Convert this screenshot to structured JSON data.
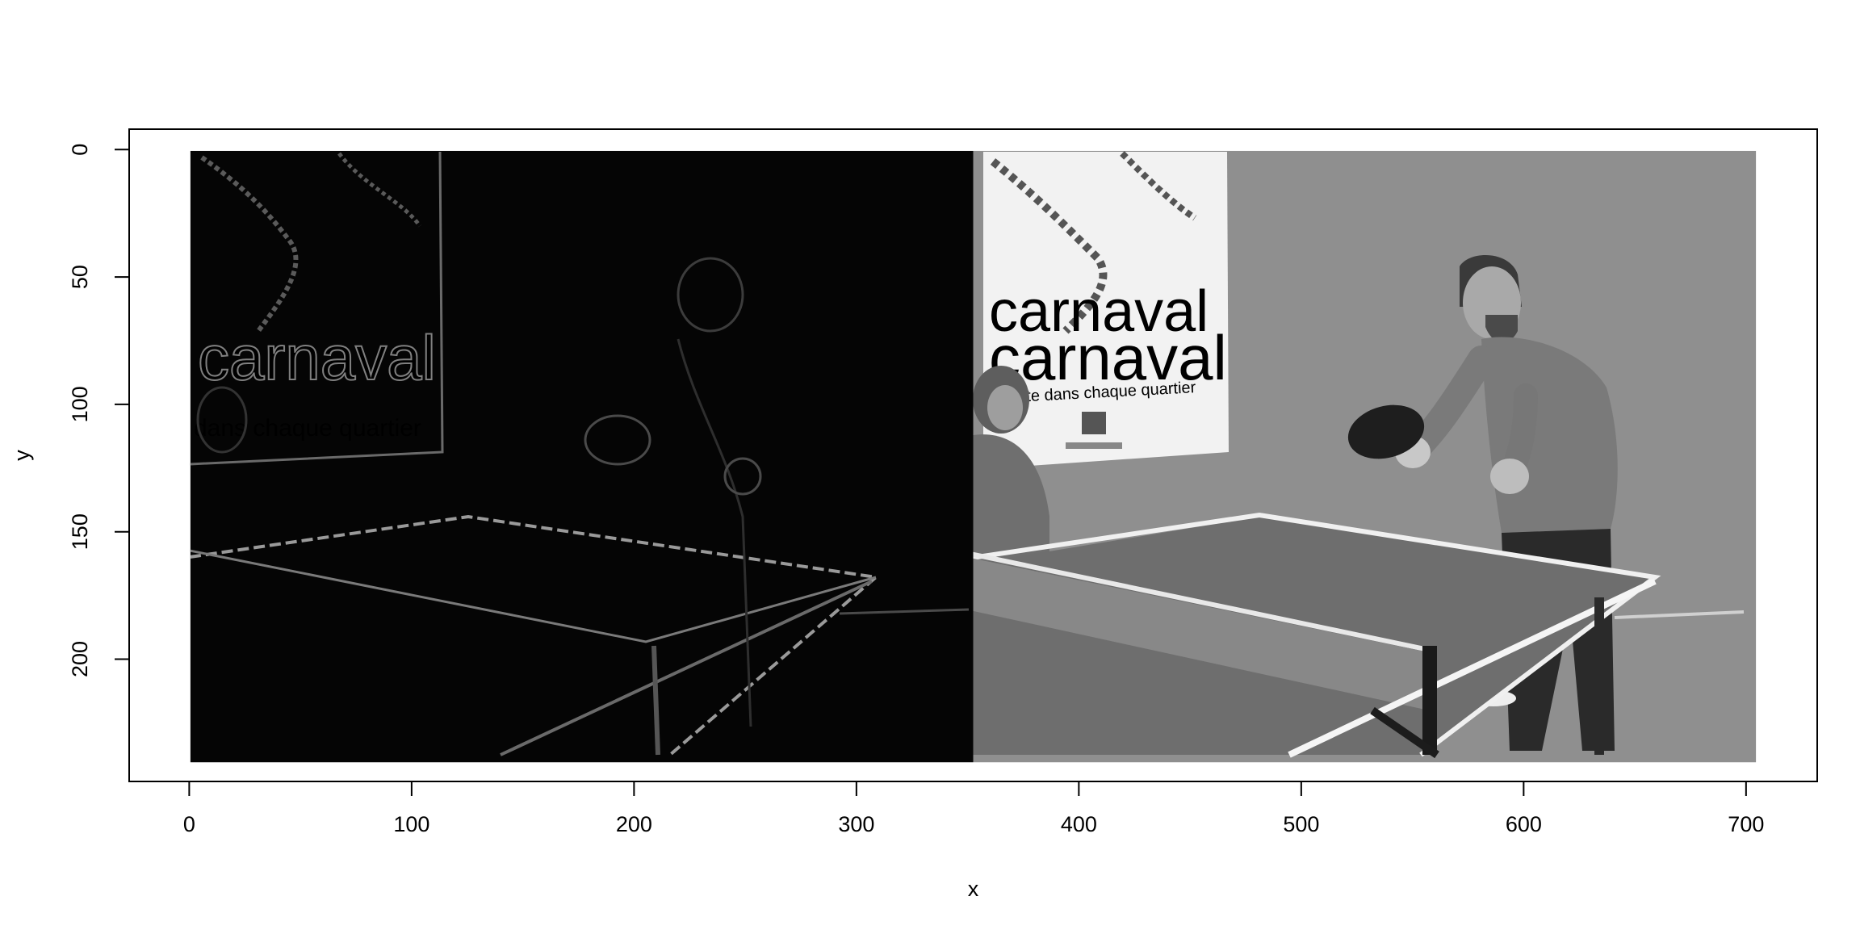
{
  "chart_data": {
    "type": "image",
    "xlabel": "x",
    "ylabel": "y",
    "xlim": [
      -27,
      732
    ],
    "ylim": [
      248,
      -8
    ],
    "x_ticks": [
      0,
      100,
      200,
      300,
      400,
      500,
      600,
      700
    ],
    "y_ticks": [
      0,
      50,
      100,
      150,
      200
    ],
    "grid": false,
    "legend": "none",
    "panels": [
      {
        "name": "edge-map",
        "x_range": [
          1,
          352
        ],
        "y_range": [
          1,
          240
        ],
        "tone": "dark"
      },
      {
        "name": "grayscale-photo",
        "x_range": [
          353,
          704
        ],
        "y_range": [
          1,
          240
        ],
        "tone": "gray"
      }
    ],
    "poster_text": [
      "carnaval",
      "carnaval",
      "fête dans chaque quartier"
    ],
    "colors": {
      "background": "#ffffff",
      "axis": "#000000",
      "edge_panel": "#050505",
      "photo_wall": "#8f8f8f"
    }
  }
}
